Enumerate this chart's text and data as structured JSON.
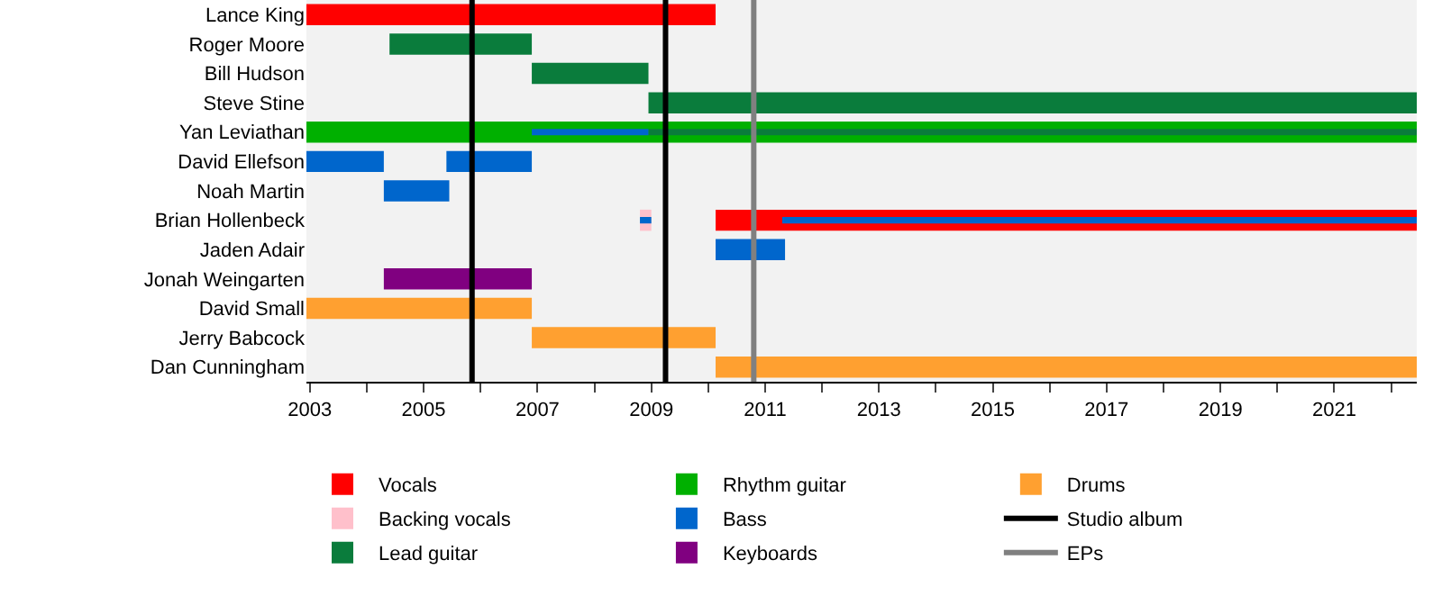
{
  "chart_data": {
    "type": "bar",
    "orientation": "horizontal",
    "categories": [
      "Lance King",
      "Roger Moore",
      "Bill Hudson",
      "Steve Stine",
      "Yan Leviathan",
      "David Ellefson",
      "Noah Martin",
      "Brian Hollenbeck",
      "Jaden Adair",
      "Jonah Weingarten",
      "David Small",
      "Jerry Babcock",
      "Dan Cunningham"
    ],
    "xlim": [
      2002.94,
      2022.45
    ],
    "xticks": [
      2003,
      {
        "value": 2004,
        "label": null
      },
      2005,
      {
        "value": 2006,
        "label": null
      },
      2007,
      {
        "value": 2008,
        "label": null
      },
      2009,
      {
        "value": 2010,
        "label": null
      },
      2011,
      {
        "value": 2012,
        "label": null
      },
      2013,
      {
        "value": 2014,
        "label": null
      },
      2015,
      {
        "value": 2016,
        "label": null
      },
      2017,
      {
        "value": 2018,
        "label": null
      },
      2019,
      {
        "value": 2020,
        "label": null
      },
      2021,
      {
        "value": 2022,
        "label": null
      }
    ],
    "series": [
      {
        "name": "Vocals",
        "color": "#ff0000",
        "base": [
          2002.94,
          null,
          null,
          null,
          null,
          null,
          null,
          2010.13,
          null,
          null,
          null,
          null,
          null
        ],
        "values": [
          7.19,
          null,
          null,
          null,
          null,
          null,
          null,
          12.32,
          null,
          null,
          null,
          null,
          null
        ]
      },
      {
        "name": "Backing vocals",
        "color": "#ffc0cb",
        "base": [
          null,
          null,
          null,
          null,
          null,
          null,
          null,
          2008.8,
          null,
          null,
          null,
          null,
          null
        ],
        "values": [
          null,
          null,
          null,
          null,
          null,
          null,
          null,
          0.2,
          null,
          null,
          null,
          null,
          null
        ]
      },
      {
        "name": "Lead guitar",
        "color": "#0a7c3c",
        "base": [
          null,
          2004.4,
          2006.9,
          2008.95,
          null,
          null,
          null,
          null,
          null,
          null,
          null,
          null,
          null
        ],
        "values": [
          null,
          2.5,
          2.05,
          13.5,
          null,
          null,
          null,
          null,
          null,
          null,
          null,
          null,
          null
        ]
      },
      {
        "name": "Rhythm guitar",
        "color": "#00b000",
        "base": [
          null,
          null,
          null,
          null,
          2002.94,
          null,
          null,
          null,
          null,
          null,
          null,
          null,
          null
        ],
        "values": [
          null,
          null,
          null,
          null,
          19.51,
          null,
          null,
          null,
          null,
          null,
          null,
          null,
          null
        ]
      },
      {
        "name": "Bass",
        "color": "#0066cc",
        "base": [
          null,
          null,
          null,
          null,
          null,
          2002.94,
          2004.3,
          null,
          2010.13,
          null,
          null,
          null,
          null
        ],
        "values": [
          null,
          null,
          null,
          null,
          null,
          1.36,
          1.15,
          null,
          1.22,
          null,
          null,
          null,
          null
        ]
      },
      {
        "name": "Keyboards",
        "color": "#800080",
        "base": [
          null,
          null,
          null,
          null,
          null,
          null,
          null,
          null,
          null,
          2004.3,
          null,
          null,
          null
        ],
        "values": [
          null,
          null,
          null,
          null,
          null,
          null,
          null,
          null,
          null,
          2.6,
          null,
          null,
          null
        ]
      },
      {
        "name": "Drums",
        "color": "#ffa030",
        "base": [
          null,
          null,
          null,
          null,
          null,
          null,
          null,
          null,
          null,
          null,
          2002.94,
          2006.9,
          2010.13
        ],
        "values": [
          null,
          null,
          null,
          null,
          null,
          null,
          null,
          null,
          null,
          null,
          3.96,
          3.23,
          12.32
        ]
      },
      {
        "color": "#0066cc",
        "base": [
          null,
          null,
          null,
          null,
          null,
          2005.4,
          null,
          null,
          null,
          null,
          null,
          null,
          null
        ],
        "values": [
          null,
          null,
          null,
          null,
          null,
          1.5,
          null,
          null,
          null,
          null,
          null,
          null,
          null
        ]
      },
      {
        "color": "#0a7c3c",
        "base": [
          null,
          null,
          null,
          null,
          2008.95,
          null,
          null,
          null,
          null,
          null,
          null,
          null,
          null
        ],
        "values": [
          null,
          null,
          null,
          null,
          13.5,
          null,
          null,
          null,
          null,
          null,
          null,
          null,
          null
        ]
      },
      {
        "color": "#0066cc",
        "base": [
          null,
          null,
          null,
          null,
          2006.9,
          null,
          null,
          2011.3,
          null,
          null,
          null,
          null,
          null
        ],
        "values": [
          null,
          null,
          null,
          null,
          2.05,
          null,
          null,
          11.15,
          null,
          null,
          null,
          null,
          null
        ]
      },
      {
        "color": "#0066cc",
        "base": [
          null,
          null,
          null,
          null,
          null,
          null,
          null,
          2008.8,
          null,
          null,
          null,
          null,
          null
        ],
        "values": [
          null,
          null,
          null,
          null,
          null,
          null,
          null,
          0.2,
          null,
          null,
          null,
          null,
          null
        ]
      }
    ],
    "ref_lines": [
      {
        "axis": "x",
        "value": 2005.85,
        "label": "Studio album",
        "color": "#000000"
      },
      {
        "axis": "x",
        "value": 2009.25,
        "color": "#000000"
      },
      {
        "axis": "x",
        "value": 2010.8,
        "label": "EPs",
        "color": "#808080"
      }
    ],
    "legend": "bottom"
  }
}
